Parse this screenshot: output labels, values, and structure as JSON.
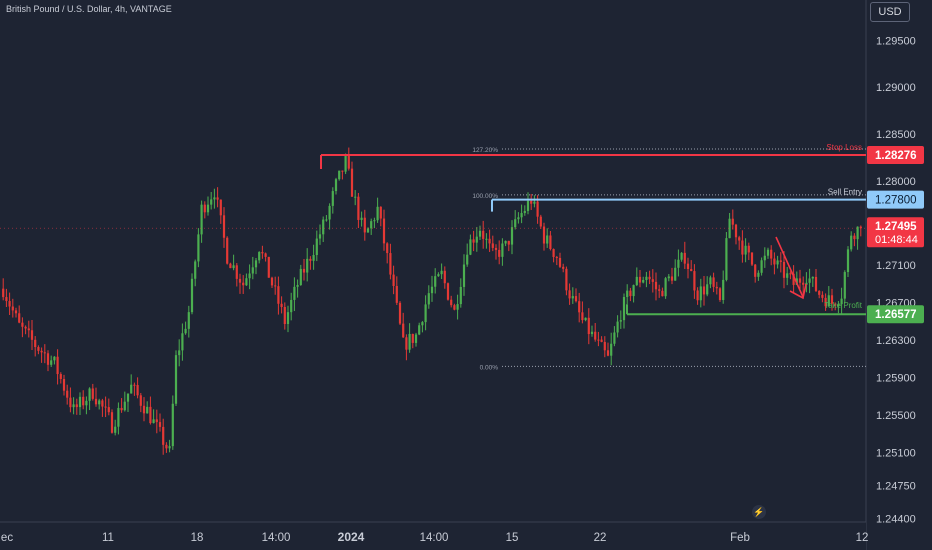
{
  "header": {
    "symbol_title": "British Pound / U.S. Dollar, 4h, VANTAGE"
  },
  "currency_button": "USD",
  "countdown": "01:48:44",
  "lightning_icon": "⚡",
  "colors": {
    "background": "#1e2433",
    "up_candle": "#4caf50",
    "down_candle": "#e53935",
    "stop_loss": "#f23645",
    "sell_entry": "#90caf9",
    "take_profit": "#4caf50",
    "fib_dotted": "#9aa0ae"
  },
  "chart_data": {
    "type": "candlestick",
    "symbol": "British Pound / U.S. Dollar",
    "timeframe": "4h",
    "broker": "VANTAGE",
    "x_tick_labels": [
      "ec",
      "11",
      "18",
      "14:00",
      "2024",
      "14:00",
      "15",
      "22",
      "Feb",
      "12"
    ],
    "y_ticks": [
      1.295,
      1.29,
      1.285,
      1.28,
      1.271,
      1.267,
      1.263,
      1.259,
      1.255,
      1.251,
      1.2475,
      1.244
    ],
    "y_tick_labels": [
      "1.29500",
      "1.29000",
      "1.28500",
      "1.28000",
      "1.27100",
      "1.26700",
      "1.26300",
      "1.25900",
      "1.25500",
      "1.25100",
      "1.24750",
      "1.24400"
    ],
    "ylim": [
      1.2436,
      1.2993
    ],
    "price_anchors": [
      [
        0,
        1.2685
      ],
      [
        5,
        1.2645
      ],
      [
        10,
        1.2625
      ],
      [
        16,
        1.2605
      ],
      [
        22,
        1.2555
      ],
      [
        28,
        1.2575
      ],
      [
        34,
        1.254
      ],
      [
        40,
        1.258
      ],
      [
        45,
        1.2555
      ],
      [
        52,
        1.251
      ],
      [
        54,
        1.261
      ],
      [
        58,
        1.266
      ],
      [
        62,
        1.277
      ],
      [
        66,
        1.279
      ],
      [
        70,
        1.272
      ],
      [
        75,
        1.269
      ],
      [
        80,
        1.273
      ],
      [
        84,
        1.269
      ],
      [
        88,
        1.265
      ],
      [
        92,
        1.269
      ],
      [
        96,
        1.272
      ],
      [
        101,
        1.276
      ],
      [
        104,
        1.2795
      ],
      [
        107,
        1.282
      ],
      [
        109,
        1.279
      ],
      [
        113,
        1.274
      ],
      [
        117,
        1.277
      ],
      [
        121,
        1.27
      ],
      [
        125,
        1.2625
      ],
      [
        129,
        1.2635
      ],
      [
        133,
        1.268
      ],
      [
        137,
        1.27
      ],
      [
        141,
        1.266
      ],
      [
        145,
        1.273
      ],
      [
        149,
        1.275
      ],
      [
        153,
        1.272
      ],
      [
        157,
        1.273
      ],
      [
        161,
        1.276
      ],
      [
        165,
        1.278
      ],
      [
        169,
        1.274
      ],
      [
        173,
        1.272
      ],
      [
        177,
        1.268
      ],
      [
        181,
        1.265
      ],
      [
        185,
        1.263
      ],
      [
        189,
        1.261
      ],
      [
        193,
        1.266
      ],
      [
        197,
        1.269
      ],
      [
        201,
        1.27
      ],
      [
        205,
        1.268
      ],
      [
        209,
        1.27
      ],
      [
        213,
        1.272
      ],
      [
        217,
        1.268
      ],
      [
        221,
        1.269
      ],
      [
        224,
        1.267
      ],
      [
        227,
        1.276
      ],
      [
        231,
        1.273
      ],
      [
        235,
        1.2705
      ],
      [
        239,
        1.272
      ],
      [
        243,
        1.2705
      ],
      [
        247,
        1.269
      ],
      [
        251,
        1.27
      ],
      [
        255,
        1.268
      ],
      [
        259,
        1.267
      ],
      [
        262,
        1.268
      ],
      [
        265,
        1.2745
      ],
      [
        268,
        1.275
      ]
    ],
    "last_price": 1.27495,
    "last_price_label": "1.27495",
    "levels": [
      {
        "name": "Stop Loss",
        "label": "Stop Loss",
        "price": 1.28276,
        "price_label": "1.28276",
        "color": "#f23645"
      },
      {
        "name": "Sell Entry",
        "label": "Sell Entry",
        "price": 1.278,
        "price_label": "1.27800",
        "color": "#90caf9"
      },
      {
        "name": "Take Profit",
        "label": "Take Profit",
        "price": 1.26577,
        "price_label": "1.26577",
        "color": "#4caf50"
      }
    ],
    "fibonacci": [
      {
        "label": "127.20%",
        "price": 1.2834
      },
      {
        "label": "100.00%",
        "price": 1.2785
      },
      {
        "label": "0.00%",
        "price": 1.2602
      }
    ],
    "forecast_arrow": "down",
    "grid": false
  }
}
